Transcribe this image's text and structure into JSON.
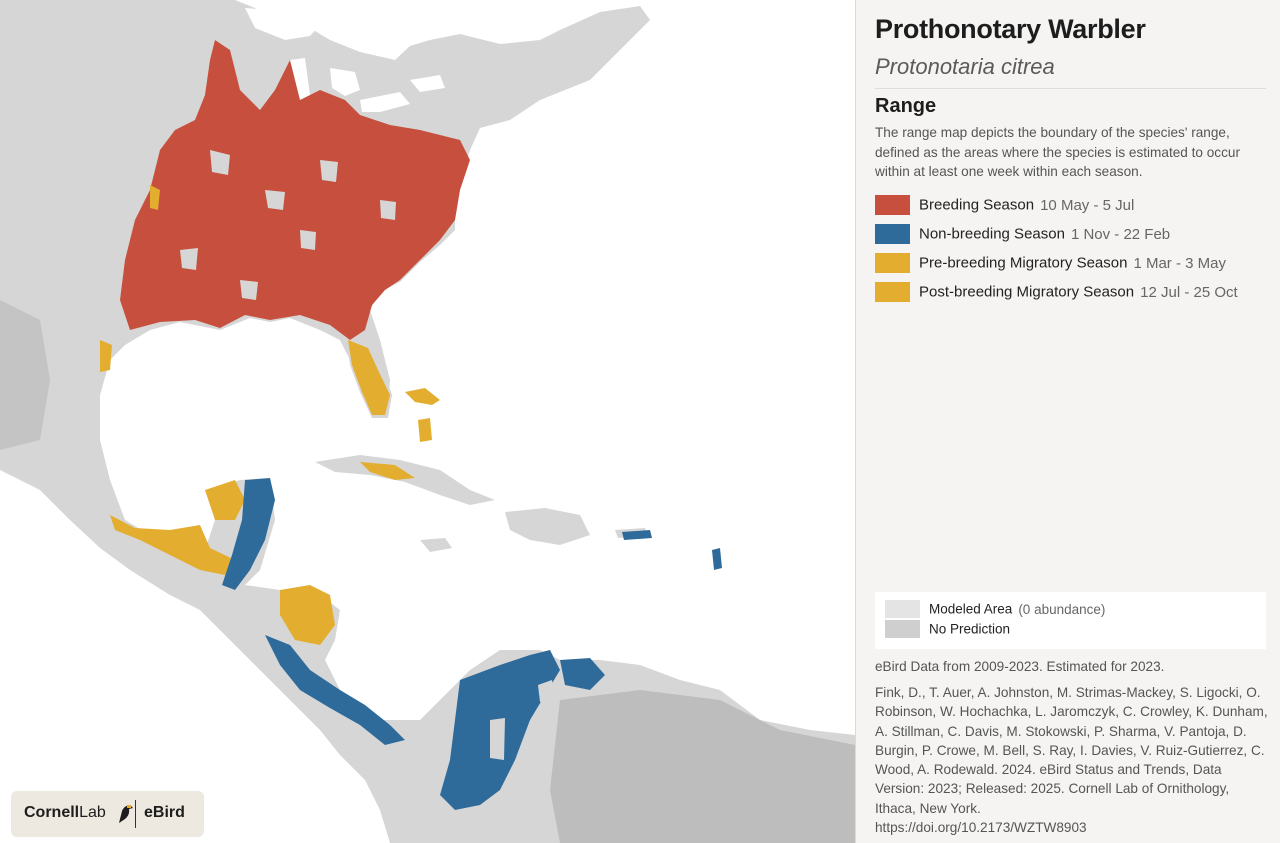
{
  "species": {
    "common_name": "Prothonotary Warbler",
    "scientific_name": "Protonotaria citrea"
  },
  "range": {
    "heading": "Range",
    "description": "The range map depicts the boundary of the species' range, defined as the areas where the species is estimated to occur within at least one week within each season."
  },
  "seasons": [
    {
      "label": "Breeding Season",
      "dates": "10 May - 5 Jul",
      "color": "#c6503d"
    },
    {
      "label": "Non-breeding Season",
      "dates": "1 Nov - 22 Feb",
      "color": "#2f6b9a"
    },
    {
      "label": "Pre-breeding Migratory Season",
      "dates": "1 Mar - 3 May",
      "color": "#e3ad2f"
    },
    {
      "label": "Post-breeding Migratory Season",
      "dates": "12 Jul - 25 Oct",
      "color": "#e3ad2f"
    }
  ],
  "model_legend": [
    {
      "label": "Modeled Area",
      "note": "(0 abundance)",
      "color": "#e4e4e4"
    },
    {
      "label": "No Prediction",
      "note": "",
      "color": "#cfcfcf"
    }
  ],
  "data_source": "eBird Data from 2009-2023. Estimated for 2023.",
  "citation": "Fink, D., T. Auer, A. Johnston, M. Strimas-Mackey, S. Ligocki, O. Robinson, W. Hochachka, L. Jaromczyk, C. Crowley, K. Dunham, A. Stillman, C. Davis, M. Stokowski, P. Sharma, V. Pantoja, D. Burgin, P. Crowe, M. Bell, S. Ray, I. Davies, V. Ruiz-Gutierrez, C. Wood, A. Rodewald. 2024. eBird Status and Trends, Data Version: 2023; Released: 2025. Cornell Lab of Ornithology, Ithaca, New York.",
  "doi": "https://doi.org/10.2173/WZTW8903",
  "logo": {
    "cornell": "Cornell",
    "lab": "Lab",
    "ebird": "eBird"
  },
  "map": {
    "land_color": "#d9d9d9",
    "water_color": "#ffffff"
  }
}
